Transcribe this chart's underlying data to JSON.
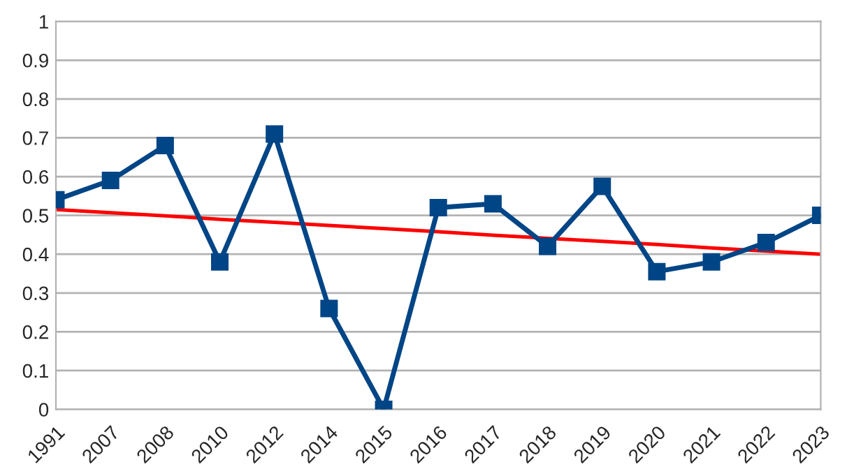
{
  "chart_data": {
    "type": "line",
    "categories": [
      "1991",
      "2007",
      "2008",
      "2010",
      "2012",
      "2014",
      "2015",
      "2016",
      "2017",
      "2018",
      "2019",
      "2020",
      "2021",
      "2022",
      "2023"
    ],
    "series": [
      {
        "color": "#004586",
        "marker": "square",
        "values": [
          0.54,
          0.59,
          0.68,
          0.38,
          0.71,
          0.26,
          0.0,
          0.52,
          0.53,
          0.42,
          0.575,
          0.355,
          0.38,
          0.43,
          0.5
        ]
      },
      {
        "type": "line",
        "color": "#ff0000",
        "marker": "none",
        "values": [
          0.515,
          0.507,
          0.499,
          0.49,
          0.482,
          0.474,
          0.466,
          0.458,
          0.449,
          0.441,
          0.433,
          0.425,
          0.416,
          0.408,
          0.4
        ]
      }
    ],
    "ylim": [
      0,
      1
    ],
    "yticks": [
      0,
      0.1,
      0.2,
      0.3,
      0.4,
      0.5,
      0.6,
      0.7,
      0.8,
      0.9,
      1
    ],
    "grid": "y",
    "line_style": "solid"
  }
}
